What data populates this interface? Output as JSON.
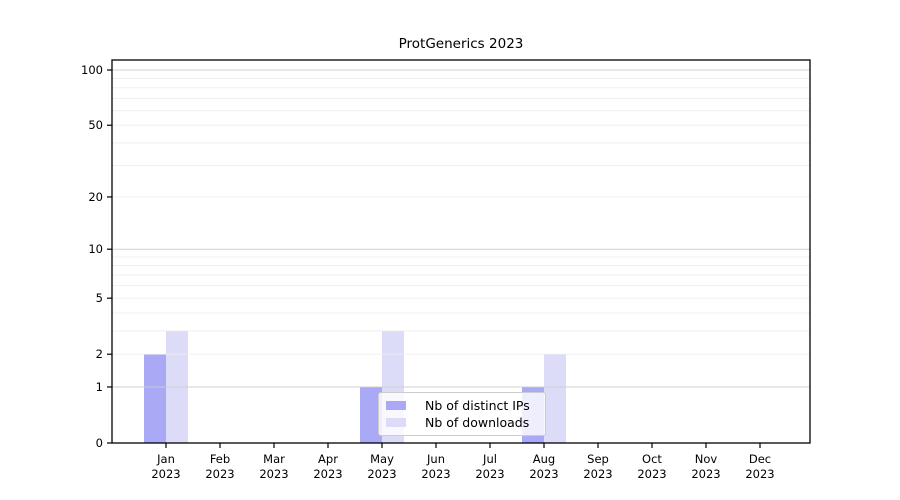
{
  "chart_data": {
    "type": "bar",
    "title": "ProtGenerics 2023",
    "categories": [
      "Jan",
      "Feb",
      "Mar",
      "Apr",
      "May",
      "Jun",
      "Jul",
      "Aug",
      "Sep",
      "Oct",
      "Nov",
      "Dec"
    ],
    "x_tick_label_line2": "2023",
    "series": [
      {
        "name": "Nb of distinct IPs",
        "color": "#a9a9f5",
        "values": [
          2,
          0,
          0,
          0,
          1,
          0,
          0,
          1,
          0,
          0,
          0,
          0
        ]
      },
      {
        "name": "Nb of downloads",
        "color": "#dcdcf8",
        "values": [
          3,
          0,
          0,
          0,
          3,
          0,
          0,
          2,
          0,
          0,
          0,
          0
        ]
      }
    ],
    "xlabel": "",
    "ylabel": "",
    "y_axis": {
      "scale": "log1p",
      "tick_values": [
        0,
        1,
        2,
        5,
        10,
        20,
        50,
        100
      ],
      "tick_labels": [
        "0",
        "1",
        "2",
        "5",
        "10",
        "20",
        "50",
        "100"
      ],
      "major_gridlines": [
        1,
        10,
        100
      ],
      "minor_gridlines": [
        2,
        3,
        4,
        5,
        6,
        7,
        8,
        9,
        20,
        30,
        40,
        50,
        60,
        70,
        80,
        90
      ],
      "ylim": [
        0,
        100
      ]
    },
    "grid": true,
    "legend": {
      "position": "lower center"
    },
    "colors": {
      "axis": "#000000",
      "major_grid": "#cccccc",
      "minor_grid": "#ececec",
      "text": "#000000",
      "background": "#ffffff"
    }
  }
}
